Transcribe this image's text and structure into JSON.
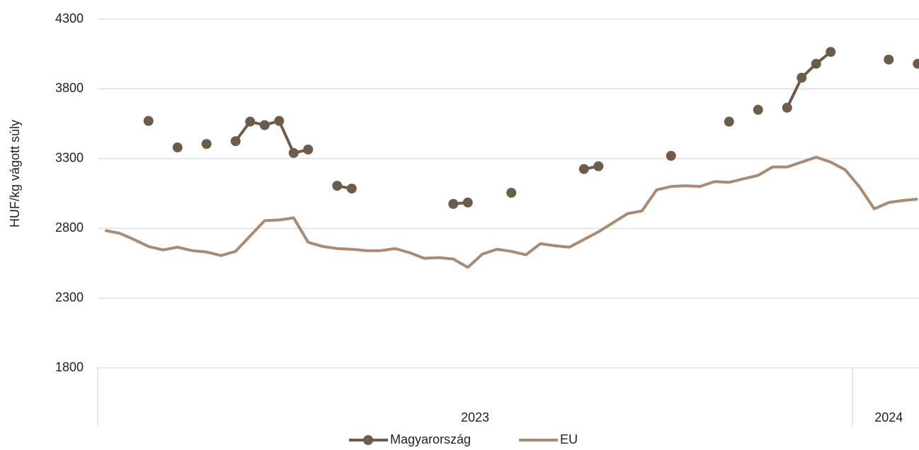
{
  "chart_data": {
    "type": "line",
    "y_label": "HUF/kg vágott súly",
    "categories": [
      null,
      null,
      null,
      null,
      null,
      null,
      null,
      null,
      null,
      null,
      null,
      null,
      null,
      null,
      null,
      null,
      null,
      null,
      null,
      null,
      null,
      null,
      null,
      null,
      null,
      null,
      null,
      null,
      null,
      null,
      null,
      null,
      null,
      null,
      null,
      null,
      null,
      null,
      null,
      null,
      null,
      null,
      null,
      null,
      null,
      null,
      null,
      null,
      null,
      null,
      null,
      null,
      null,
      null,
      null,
      null,
      null
    ],
    "x_groups": [
      {
        "label": "2023",
        "count": 52
      },
      {
        "label": "2024",
        "count": 5
      }
    ],
    "series": [
      {
        "name": "Magyarország",
        "color": "#6e5c4b",
        "markers": true,
        "values": [
          null,
          null,
          null,
          3570,
          null,
          3380,
          null,
          3405,
          null,
          3425,
          3565,
          3540,
          3570,
          3340,
          3365,
          null,
          3105,
          3085,
          null,
          null,
          null,
          null,
          null,
          null,
          2975,
          2985,
          null,
          null,
          3055,
          null,
          null,
          null,
          null,
          3225,
          3245,
          null,
          null,
          null,
          null,
          3320,
          null,
          null,
          null,
          3565,
          null,
          3650,
          null,
          3665,
          3880,
          3980,
          4065,
          null,
          null,
          null,
          4010,
          null,
          3980
        ]
      },
      {
        "name": "EU",
        "color": "#a88b72",
        "markers": false,
        "values": [
          2785,
          2765,
          2720,
          2670,
          2645,
          2665,
          2640,
          2630,
          2605,
          2635,
          2745,
          2855,
          2860,
          2875,
          2700,
          2670,
          2655,
          2650,
          2640,
          2640,
          2655,
          2625,
          2585,
          2590,
          2580,
          2520,
          2615,
          2650,
          2635,
          2610,
          2690,
          2675,
          2665,
          2720,
          2775,
          2840,
          2905,
          2925,
          3075,
          3100,
          3105,
          3100,
          3135,
          3130,
          3155,
          3180,
          3240,
          3240,
          3275,
          3310,
          3275,
          3220,
          3095,
          2940,
          2985,
          3000,
          3010
        ]
      }
    ],
    "ylim": [
      1800,
      4300
    ],
    "yticks": [
      1800,
      2300,
      2800,
      3300,
      3800,
      4300
    ],
    "grid": true,
    "legend": "bottom"
  }
}
